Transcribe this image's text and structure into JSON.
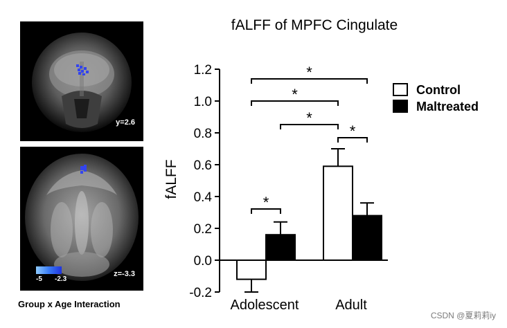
{
  "brain_panels": {
    "top_coord": "y=2.6",
    "bottom_coord": "z=-3.3",
    "scale_min": "-5",
    "scale_max": "-2.3",
    "caption": "Group x Age Interaction",
    "activation_color": "#3344ee"
  },
  "watermark": "CSDN @夏莉莉iy",
  "chart_data": {
    "type": "bar",
    "title": "fALFF of MPFC Cingulate",
    "xlabel": "",
    "ylabel": "fALFF",
    "ylim": [
      -0.2,
      1.2
    ],
    "yticks": [
      "-0.2",
      "0.0",
      "0.2",
      "0.4",
      "0.6",
      "0.8",
      "1.0",
      "1.2"
    ],
    "categories": [
      "Adolescent",
      "Adult"
    ],
    "series": [
      {
        "name": "Control",
        "color": "#ffffff",
        "values": [
          -0.12,
          0.59
        ],
        "errors": [
          0.08,
          0.11
        ]
      },
      {
        "name": "Maltreated",
        "color": "#000000",
        "values": [
          0.16,
          0.28
        ],
        "errors": [
          0.08,
          0.08
        ]
      }
    ],
    "significance": [
      {
        "from": [
          0,
          1
        ],
        "to": [
          0,
          0
        ],
        "label": "*"
      },
      {
        "from": [
          0,
          1
        ],
        "to": [
          1,
          0
        ],
        "label": "*"
      },
      {
        "from": [
          0,
          0
        ],
        "to": [
          1,
          0
        ],
        "label": "*"
      },
      {
        "from": [
          1,
          0
        ],
        "to": [
          1,
          1
        ],
        "label": "*"
      },
      {
        "from": [
          0,
          0
        ],
        "to": [
          1,
          1
        ],
        "label": "*"
      }
    ],
    "legend_position": "top-right",
    "grid": false
  }
}
